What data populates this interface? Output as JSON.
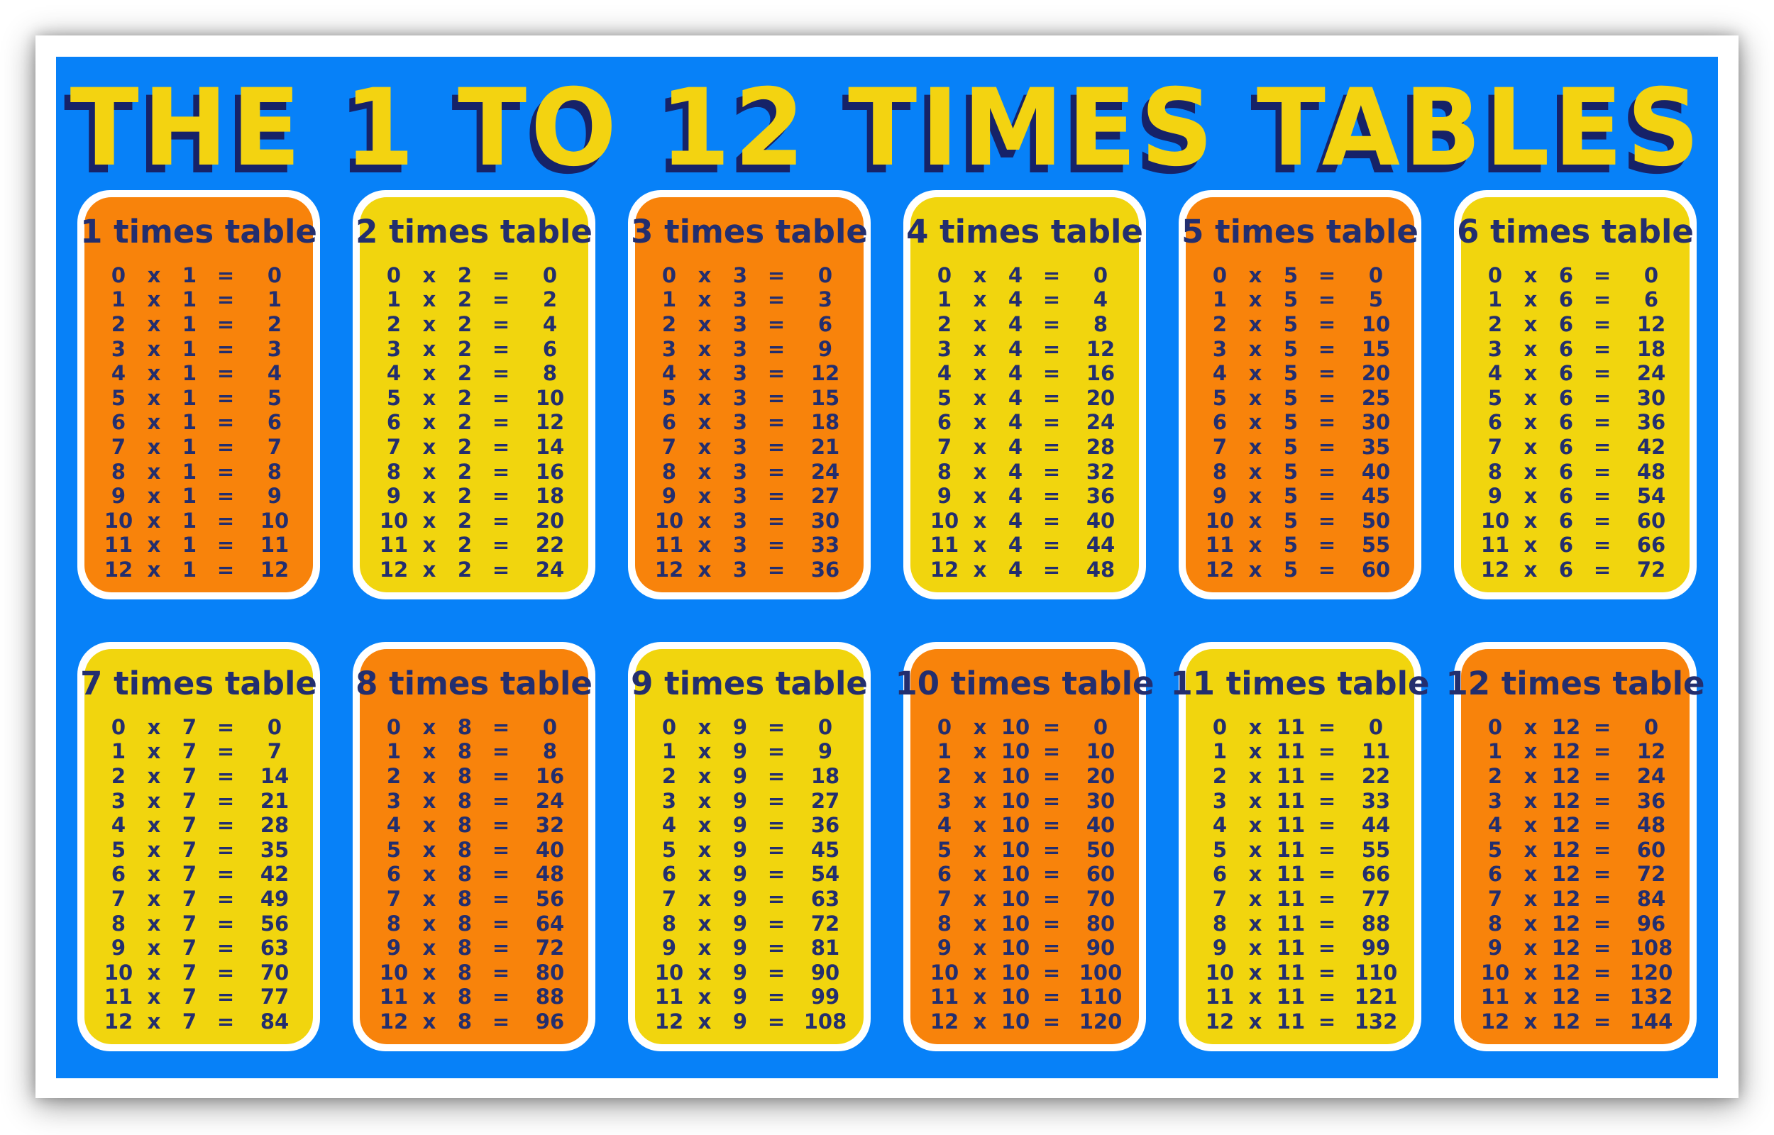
{
  "page_title": "THE 1 TO 12 TIMES TABLES",
  "symbols": {
    "multiply": "x",
    "equals": "="
  },
  "colors": {
    "blue": "#0781F8",
    "orange": "#F8830B",
    "yellow": "#F1D50E",
    "navy": "#232E6E",
    "title_yellow": "#F3D311",
    "title_shadow": "#162268",
    "card_border": "#FFFFFF"
  },
  "tables": [
    {
      "label": "1 times table",
      "color": "orange",
      "rows": [
        [
          0,
          1,
          0
        ],
        [
          1,
          1,
          1
        ],
        [
          2,
          1,
          2
        ],
        [
          3,
          1,
          3
        ],
        [
          4,
          1,
          4
        ],
        [
          5,
          1,
          5
        ],
        [
          6,
          1,
          6
        ],
        [
          7,
          1,
          7
        ],
        [
          8,
          1,
          8
        ],
        [
          9,
          1,
          9
        ],
        [
          10,
          1,
          10
        ],
        [
          11,
          1,
          11
        ],
        [
          12,
          1,
          12
        ]
      ]
    },
    {
      "label": "2 times table",
      "color": "yellow",
      "rows": [
        [
          0,
          2,
          0
        ],
        [
          1,
          2,
          2
        ],
        [
          2,
          2,
          4
        ],
        [
          3,
          2,
          6
        ],
        [
          4,
          2,
          8
        ],
        [
          5,
          2,
          10
        ],
        [
          6,
          2,
          12
        ],
        [
          7,
          2,
          14
        ],
        [
          8,
          2,
          16
        ],
        [
          9,
          2,
          18
        ],
        [
          10,
          2,
          20
        ],
        [
          11,
          2,
          22
        ],
        [
          12,
          2,
          24
        ]
      ]
    },
    {
      "label": "3 times table",
      "color": "orange",
      "rows": [
        [
          0,
          3,
          0
        ],
        [
          1,
          3,
          3
        ],
        [
          2,
          3,
          6
        ],
        [
          3,
          3,
          9
        ],
        [
          4,
          3,
          12
        ],
        [
          5,
          3,
          15
        ],
        [
          6,
          3,
          18
        ],
        [
          7,
          3,
          21
        ],
        [
          8,
          3,
          24
        ],
        [
          9,
          3,
          27
        ],
        [
          10,
          3,
          30
        ],
        [
          11,
          3,
          33
        ],
        [
          12,
          3,
          36
        ]
      ]
    },
    {
      "label": "4 times table",
      "color": "yellow",
      "rows": [
        [
          0,
          4,
          0
        ],
        [
          1,
          4,
          4
        ],
        [
          2,
          4,
          8
        ],
        [
          3,
          4,
          12
        ],
        [
          4,
          4,
          16
        ],
        [
          5,
          4,
          20
        ],
        [
          6,
          4,
          24
        ],
        [
          7,
          4,
          28
        ],
        [
          8,
          4,
          32
        ],
        [
          9,
          4,
          36
        ],
        [
          10,
          4,
          40
        ],
        [
          11,
          4,
          44
        ],
        [
          12,
          4,
          48
        ]
      ]
    },
    {
      "label": "5 times table",
      "color": "orange",
      "rows": [
        [
          0,
          5,
          0
        ],
        [
          1,
          5,
          5
        ],
        [
          2,
          5,
          10
        ],
        [
          3,
          5,
          15
        ],
        [
          4,
          5,
          20
        ],
        [
          5,
          5,
          25
        ],
        [
          6,
          5,
          30
        ],
        [
          7,
          5,
          35
        ],
        [
          8,
          5,
          40
        ],
        [
          9,
          5,
          45
        ],
        [
          10,
          5,
          50
        ],
        [
          11,
          5,
          55
        ],
        [
          12,
          5,
          60
        ]
      ]
    },
    {
      "label": "6 times table",
      "color": "yellow",
      "rows": [
        [
          0,
          6,
          0
        ],
        [
          1,
          6,
          6
        ],
        [
          2,
          6,
          12
        ],
        [
          3,
          6,
          18
        ],
        [
          4,
          6,
          24
        ],
        [
          5,
          6,
          30
        ],
        [
          6,
          6,
          36
        ],
        [
          7,
          6,
          42
        ],
        [
          8,
          6,
          48
        ],
        [
          9,
          6,
          54
        ],
        [
          10,
          6,
          60
        ],
        [
          11,
          6,
          66
        ],
        [
          12,
          6,
          72
        ]
      ]
    },
    {
      "label": "7 times table",
      "color": "yellow",
      "rows": [
        [
          0,
          7,
          0
        ],
        [
          1,
          7,
          7
        ],
        [
          2,
          7,
          14
        ],
        [
          3,
          7,
          21
        ],
        [
          4,
          7,
          28
        ],
        [
          5,
          7,
          35
        ],
        [
          6,
          7,
          42
        ],
        [
          7,
          7,
          49
        ],
        [
          8,
          7,
          56
        ],
        [
          9,
          7,
          63
        ],
        [
          10,
          7,
          70
        ],
        [
          11,
          7,
          77
        ],
        [
          12,
          7,
          84
        ]
      ]
    },
    {
      "label": "8 times table",
      "color": "orange",
      "rows": [
        [
          0,
          8,
          0
        ],
        [
          1,
          8,
          8
        ],
        [
          2,
          8,
          16
        ],
        [
          3,
          8,
          24
        ],
        [
          4,
          8,
          32
        ],
        [
          5,
          8,
          40
        ],
        [
          6,
          8,
          48
        ],
        [
          7,
          8,
          56
        ],
        [
          8,
          8,
          64
        ],
        [
          9,
          8,
          72
        ],
        [
          10,
          8,
          80
        ],
        [
          11,
          8,
          88
        ],
        [
          12,
          8,
          96
        ]
      ]
    },
    {
      "label": "9 times table",
      "color": "yellow",
      "rows": [
        [
          0,
          9,
          0
        ],
        [
          1,
          9,
          9
        ],
        [
          2,
          9,
          18
        ],
        [
          3,
          9,
          27
        ],
        [
          4,
          9,
          36
        ],
        [
          5,
          9,
          45
        ],
        [
          6,
          9,
          54
        ],
        [
          7,
          9,
          63
        ],
        [
          8,
          9,
          72
        ],
        [
          9,
          9,
          81
        ],
        [
          10,
          9,
          90
        ],
        [
          11,
          9,
          99
        ],
        [
          12,
          9,
          108
        ]
      ]
    },
    {
      "label": "10 times table",
      "color": "orange",
      "rows": [
        [
          0,
          10,
          0
        ],
        [
          1,
          10,
          10
        ],
        [
          2,
          10,
          20
        ],
        [
          3,
          10,
          30
        ],
        [
          4,
          10,
          40
        ],
        [
          5,
          10,
          50
        ],
        [
          6,
          10,
          60
        ],
        [
          7,
          10,
          70
        ],
        [
          8,
          10,
          80
        ],
        [
          9,
          10,
          90
        ],
        [
          10,
          10,
          100
        ],
        [
          11,
          10,
          110
        ],
        [
          12,
          10,
          120
        ]
      ]
    },
    {
      "label": "11 times table",
      "color": "yellow",
      "rows": [
        [
          0,
          11,
          0
        ],
        [
          1,
          11,
          11
        ],
        [
          2,
          11,
          22
        ],
        [
          3,
          11,
          33
        ],
        [
          4,
          11,
          44
        ],
        [
          5,
          11,
          55
        ],
        [
          6,
          11,
          66
        ],
        [
          7,
          11,
          77
        ],
        [
          8,
          11,
          88
        ],
        [
          9,
          11,
          99
        ],
        [
          10,
          11,
          110
        ],
        [
          11,
          11,
          121
        ],
        [
          12,
          11,
          132
        ]
      ]
    },
    {
      "label": "12 times table",
      "color": "orange",
      "rows": [
        [
          0,
          12,
          0
        ],
        [
          1,
          12,
          12
        ],
        [
          2,
          12,
          24
        ],
        [
          3,
          12,
          36
        ],
        [
          4,
          12,
          48
        ],
        [
          5,
          12,
          60
        ],
        [
          6,
          12,
          72
        ],
        [
          7,
          12,
          84
        ],
        [
          8,
          12,
          96
        ],
        [
          9,
          12,
          108
        ],
        [
          10,
          12,
          120
        ],
        [
          11,
          12,
          132
        ],
        [
          12,
          12,
          144
        ]
      ]
    }
  ]
}
